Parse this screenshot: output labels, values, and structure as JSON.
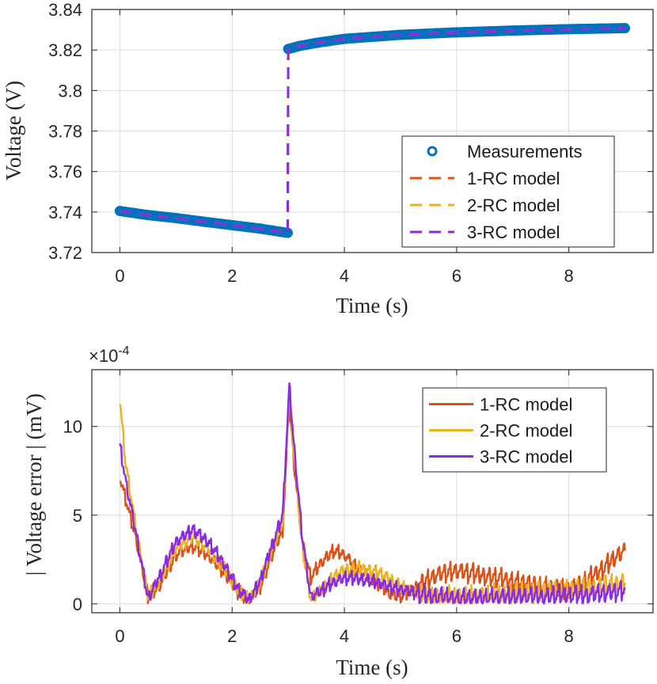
{
  "chart_data": [
    {
      "type": "line",
      "xlabel": "Time (s)",
      "ylabel": "Voltage (V)",
      "xlim": [
        -0.5,
        9.5
      ],
      "ylim": [
        3.72,
        3.84
      ],
      "xticks": [
        "0",
        "2",
        "4",
        "6",
        "8"
      ],
      "yticks": [
        "3.72",
        "3.74",
        "3.76",
        "3.78",
        "3.8",
        "3.82",
        "3.84"
      ],
      "grid": true,
      "legend_position": "bottom-right",
      "series": [
        {
          "name": "Measurements",
          "style": "markers",
          "color": "#0072BD",
          "x": [
            0,
            0.5,
            1,
            1.5,
            2,
            2.5,
            2.99,
            3.0,
            3.2,
            3.5,
            4,
            5,
            6,
            7,
            8,
            9
          ],
          "y": [
            3.7405,
            3.7385,
            3.737,
            3.7352,
            3.7335,
            3.7318,
            3.7297,
            3.8205,
            3.822,
            3.8235,
            3.8255,
            3.8275,
            3.8287,
            3.8296,
            3.8303,
            3.8308
          ]
        },
        {
          "name": "1-RC model",
          "style": "dashed",
          "color": "#D95319",
          "x": [
            0,
            0.5,
            1,
            1.5,
            2,
            2.5,
            2.99,
            3.0,
            3.2,
            3.5,
            4,
            5,
            6,
            7,
            8,
            9
          ],
          "y": [
            3.7405,
            3.7385,
            3.737,
            3.7352,
            3.7335,
            3.7318,
            3.7297,
            3.8205,
            3.822,
            3.8235,
            3.8255,
            3.8275,
            3.8287,
            3.8296,
            3.8303,
            3.8308
          ]
        },
        {
          "name": "2-RC model",
          "style": "dashed",
          "color": "#EDB120",
          "x": [
            0,
            0.5,
            1,
            1.5,
            2,
            2.5,
            2.99,
            3.0,
            3.2,
            3.5,
            4,
            5,
            6,
            7,
            8,
            9
          ],
          "y": [
            3.7405,
            3.7385,
            3.737,
            3.7352,
            3.7335,
            3.7318,
            3.7297,
            3.8205,
            3.822,
            3.8235,
            3.8255,
            3.8275,
            3.8287,
            3.8296,
            3.8303,
            3.8308
          ]
        },
        {
          "name": "3-RC model",
          "style": "dashed",
          "color": "#8A2BE2",
          "x": [
            0,
            0.5,
            1,
            1.5,
            2,
            2.5,
            2.99,
            3.0,
            3.2,
            3.5,
            4,
            5,
            6,
            7,
            8,
            9
          ],
          "y": [
            3.7405,
            3.7385,
            3.737,
            3.7352,
            3.7335,
            3.7318,
            3.7297,
            3.8205,
            3.822,
            3.8235,
            3.8255,
            3.8275,
            3.8287,
            3.8296,
            3.8303,
            3.8308
          ]
        }
      ]
    },
    {
      "type": "line",
      "xlabel": "Time (s)",
      "ylabel": "| Voltage error | (mV)",
      "exponent_label": "×10",
      "exponent_power": "-4",
      "xlim": [
        -0.5,
        9.5
      ],
      "ylim": [
        -0.5,
        13.2
      ],
      "xticks": [
        "0",
        "2",
        "4",
        "6",
        "8"
      ],
      "yticks": [
        "0",
        "5",
        "10"
      ],
      "grid": true,
      "legend_position": "top-right",
      "series": [
        {
          "name": "1-RC model",
          "color": "#D95319",
          "x": [
            0,
            0.1,
            0.3,
            0.5,
            0.7,
            1.0,
            1.3,
            1.6,
            1.9,
            2.1,
            2.3,
            2.5,
            2.7,
            2.9,
            3.02,
            3.1,
            3.25,
            3.4,
            3.6,
            3.8,
            4.0,
            4.3,
            4.6,
            4.8,
            5.0,
            5.3,
            5.6,
            6.0,
            6.5,
            7.0,
            7.5,
            8.0,
            8.3,
            8.6,
            8.8,
            9.0
          ],
          "y": [
            7.2,
            6.0,
            3.5,
            0.5,
            1.0,
            2.8,
            3.3,
            2.7,
            1.6,
            0.7,
            0.2,
            1.0,
            2.7,
            4.2,
            11.4,
            8.0,
            3.5,
            1.5,
            2.4,
            3.0,
            2.8,
            1.8,
            1.2,
            0.6,
            0.4,
            1.0,
            1.6,
            1.9,
            1.6,
            1.3,
            1.0,
            0.8,
            1.3,
            2.0,
            2.6,
            3.0
          ]
        },
        {
          "name": "2-RC model",
          "color": "#EDB120",
          "x": [
            0,
            0.1,
            0.3,
            0.5,
            0.7,
            1.0,
            1.3,
            1.6,
            1.9,
            2.1,
            2.3,
            2.5,
            2.7,
            2.9,
            3.02,
            3.1,
            3.25,
            3.4,
            3.6,
            3.8,
            4.0,
            4.3,
            4.6,
            4.8,
            5.0,
            5.3,
            5.6,
            6.0,
            6.5,
            7.0,
            7.5,
            8.0,
            8.3,
            8.6,
            8.8,
            9.0
          ],
          "y": [
            11.5,
            8.0,
            4.0,
            0.4,
            1.2,
            3.2,
            3.8,
            3.0,
            1.8,
            0.8,
            0.2,
            1.2,
            3.0,
            4.6,
            12.0,
            8.5,
            3.2,
            0.3,
            0.8,
            1.5,
            1.9,
            2.0,
            1.8,
            1.4,
            1.0,
            0.6,
            0.4,
            0.4,
            0.5,
            0.6,
            0.7,
            0.8,
            0.9,
            1.0,
            1.1,
            1.2
          ]
        },
        {
          "name": "3-RC model",
          "color": "#8A2BE2",
          "x": [
            0,
            0.1,
            0.3,
            0.5,
            0.7,
            1.0,
            1.3,
            1.6,
            1.9,
            2.1,
            2.3,
            2.5,
            2.7,
            2.9,
            3.02,
            3.1,
            3.25,
            3.4,
            3.6,
            3.8,
            4.0,
            4.3,
            4.6,
            4.8,
            5.0,
            5.3,
            5.6,
            6.0,
            6.5,
            7.0,
            7.5,
            8.0,
            8.3,
            8.6,
            8.8,
            9.0
          ],
          "y": [
            9.0,
            7.0,
            3.8,
            0.3,
            1.5,
            3.5,
            4.2,
            3.4,
            2.0,
            0.9,
            0.2,
            1.3,
            3.2,
            5.0,
            12.3,
            9.0,
            3.8,
            0.4,
            0.8,
            1.2,
            1.5,
            1.4,
            1.2,
            1.0,
            0.8,
            0.6,
            0.4,
            0.3,
            0.3,
            0.4,
            0.4,
            0.5,
            0.5,
            0.6,
            0.7,
            0.8
          ]
        }
      ]
    }
  ]
}
